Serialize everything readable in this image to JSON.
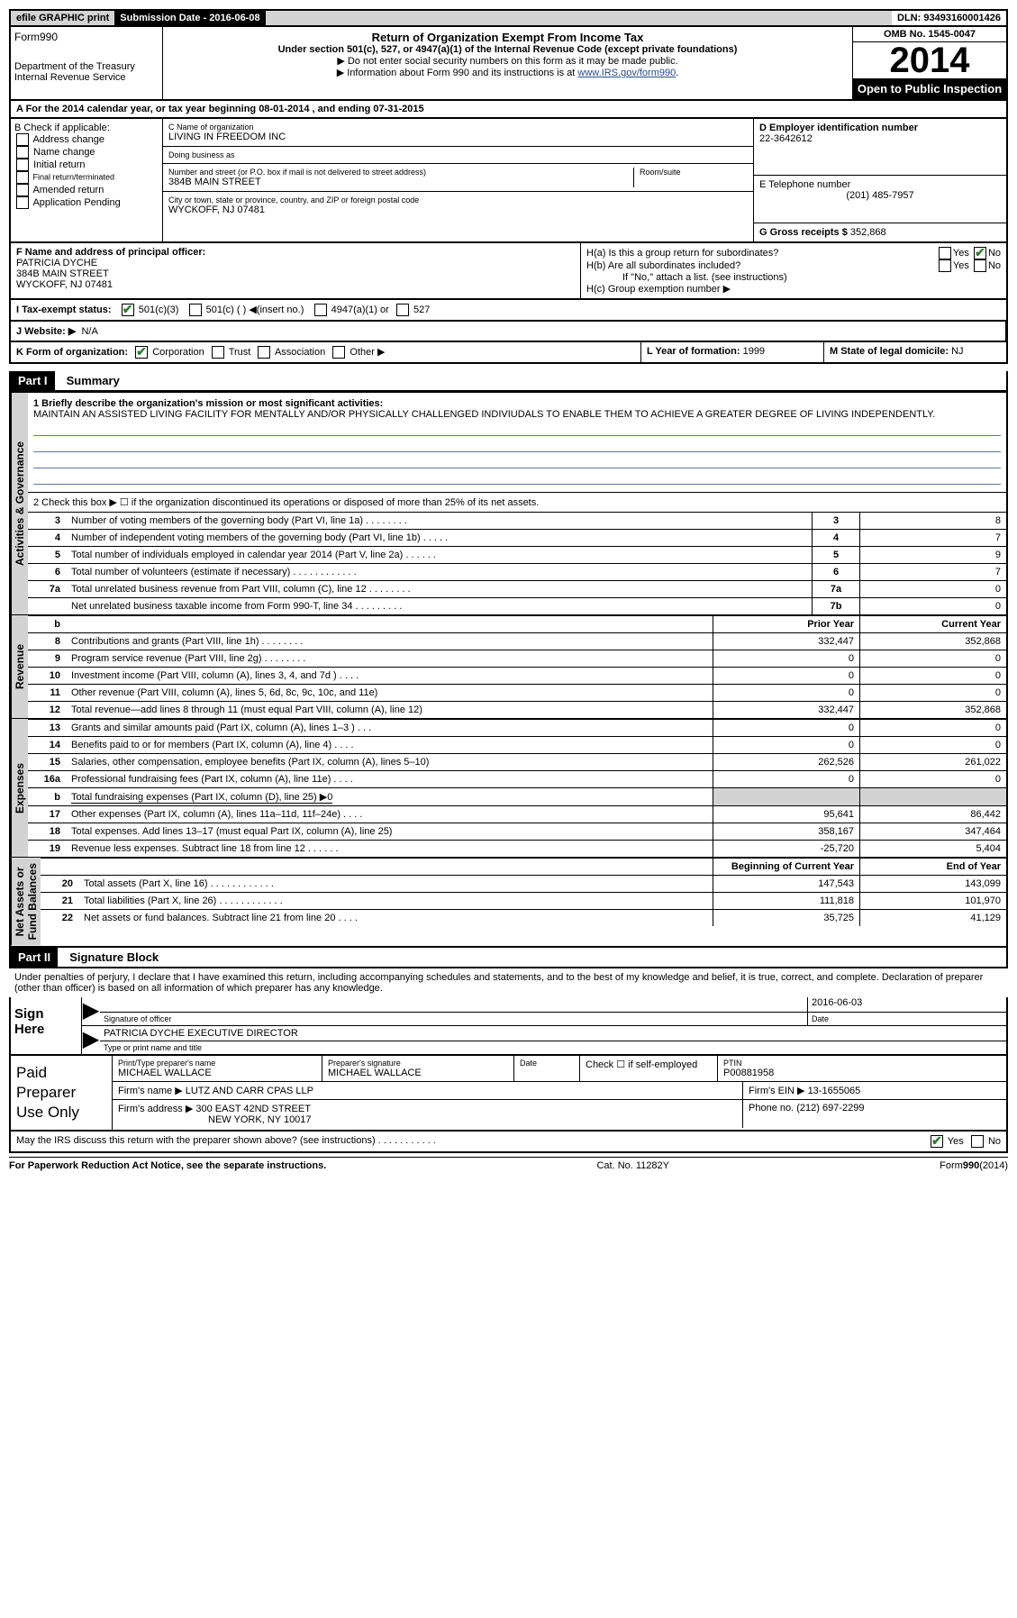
{
  "topbar": {
    "efile": "efile GRAPHIC print",
    "sub_label": "Submission Date - 2016-06-08",
    "dln": "DLN: 93493160001426"
  },
  "header": {
    "form": "Form990",
    "dept1": "Department of the Treasury",
    "dept2": "Internal Revenue Service",
    "title": "Return of Organization Exempt From Income Tax",
    "sub1": "Under section 501(c), 527, or 4947(a)(1) of the Internal Revenue Code (except private foundations)",
    "sub2": "▶ Do not enter social security numbers on this form as it may be made public.",
    "sub3_a": "▶ Information about Form 990 and its instructions is at ",
    "sub3_link": "www.IRS.gov/form990",
    "omb": "OMB No. 1545-0047",
    "year": "2014",
    "open": "Open to Public Inspection"
  },
  "lineA": "A  For the 2014 calendar year, or tax year beginning 08-01-2014    , and ending 07-31-2015",
  "boxB": {
    "label": "B Check if applicable:",
    "opts": [
      "Address change",
      "Name change",
      "Initial return",
      "Final return/terminated",
      "Amended return",
      "Application Pending"
    ]
  },
  "boxC": {
    "name_label": "C Name of organization",
    "name": "LIVING IN FREEDOM INC",
    "dba_label": "Doing business as",
    "addr_label": "Number and street (or P.O. box if mail is not delivered to street address)",
    "room": "Room/suite",
    "addr": "384B MAIN STREET",
    "city_label": "City or town, state or province, country, and ZIP or foreign postal code",
    "city": "WYCKOFF, NJ  07481"
  },
  "boxD": {
    "label": "D Employer identification number",
    "val": "22-3642612"
  },
  "boxE": {
    "label": "E Telephone number",
    "val": "(201) 485-7957"
  },
  "boxG": {
    "label": "G Gross receipts $",
    "val": "352,868"
  },
  "boxF": {
    "label": "F  Name and address of principal officer:",
    "name": "PATRICIA DYCHE",
    "addr1": "384B MAIN STREET",
    "addr2": "WYCKOFF, NJ  07481"
  },
  "boxH": {
    "ha": "H(a)  Is this a group return for subordinates?",
    "hb": "H(b)  Are all subordinates included?",
    "hb_note": "If \"No,\" attach a list. (see instructions)",
    "hc": "H(c)  Group exemption number ▶",
    "yes": "Yes",
    "no": "No"
  },
  "boxI": {
    "label": "I    Tax-exempt status:",
    "o1": "501(c)(3)",
    "o2": "501(c) (   ) ◀(insert no.)",
    "o3": "4947(a)(1) or",
    "o4": "527"
  },
  "boxJ": {
    "label": "J   Website: ▶",
    "val": "N/A"
  },
  "boxK": {
    "label": "K Form of organization:",
    "o1": "Corporation",
    "o2": "Trust",
    "o3": "Association",
    "o4": "Other ▶"
  },
  "boxL": {
    "label": "L Year of formation:",
    "val": "1999"
  },
  "boxM": {
    "label": "M State of legal domicile:",
    "val": "NJ"
  },
  "part1": {
    "tab": "Part I",
    "title": "Summary",
    "q1": "1  Briefly describe the organization's mission or most significant activities:",
    "mission": "MAINTAIN AN ASSISTED LIVING FACILITY FOR MENTALLY AND/OR PHYSICALLY CHALLENGED INDIVIUDALS TO ENABLE THEM TO ACHIEVE A GREATER DEGREE OF LIVING INDEPENDENTLY.",
    "q2": "2   Check this box ▶ ☐  if the organization discontinued its operations or disposed of more than 25% of its net assets.",
    "rows_ag": [
      {
        "n": "3",
        "t": "Number of voting members of the governing body (Part VI, line 1a)   .    .    .    .    .    .    .    .",
        "b": "3",
        "v": "8"
      },
      {
        "n": "4",
        "t": "Number of independent voting members of the governing body (Part VI, line 1b)    .    .    .    .    .",
        "b": "4",
        "v": "7"
      },
      {
        "n": "5",
        "t": "Total number of individuals employed in calendar year 2014 (Part V, line 2a)    .    .    .    .    .    .",
        "b": "5",
        "v": "9"
      },
      {
        "n": "6",
        "t": "Total number of volunteers (estimate if necessary)    .    .    .    .    .    .    .    .    .    .    .    .",
        "b": "6",
        "v": "7"
      },
      {
        "n": "7a",
        "t": "Total unrelated business revenue from Part VIII, column (C), line 12    .    .    .    .    .    .    .    .",
        "b": "7a",
        "v": "0"
      },
      {
        "n": "",
        "t": "Net unrelated business taxable income from Form 990-T, line 34    .    .    .    .    .    .    .    .    .",
        "b": "7b",
        "v": "0"
      }
    ],
    "prior": "Prior Year",
    "current": "Current Year",
    "rows_rev": [
      {
        "n": "8",
        "t": "Contributions and grants (Part VIII, line 1h)    .    .    .    .    .    .    .    .",
        "p": "332,447",
        "c": "352,868"
      },
      {
        "n": "9",
        "t": "Program service revenue (Part VIII, line 2g)    .    .    .    .    .    .    .    .",
        "p": "0",
        "c": "0"
      },
      {
        "n": "10",
        "t": "Investment income (Part VIII, column (A), lines 3, 4, and 7d )    .    .    .    .",
        "p": "0",
        "c": "0"
      },
      {
        "n": "11",
        "t": "Other revenue (Part VIII, column (A), lines 5, 6d, 8c, 9c, 10c, and 11e)",
        "p": "0",
        "c": "0"
      },
      {
        "n": "12",
        "t": "Total revenue—add lines 8 through 11 (must equal Part VIII, column (A), line 12)",
        "p": "332,447",
        "c": "352,868"
      }
    ],
    "rows_exp": [
      {
        "n": "13",
        "t": "Grants and similar amounts paid (Part IX, column (A), lines 1–3 )    .    .    .",
        "p": "0",
        "c": "0"
      },
      {
        "n": "14",
        "t": "Benefits paid to or for members (Part IX, column (A), line 4)    .    .    .    .",
        "p": "0",
        "c": "0"
      },
      {
        "n": "15",
        "t": "Salaries, other compensation, employee benefits (Part IX, column (A), lines 5–10)",
        "p": "262,526",
        "c": "261,022"
      },
      {
        "n": "16a",
        "t": "Professional fundraising fees (Part IX, column (A), line 11e)    .    .    .    .",
        "p": "0",
        "c": "0"
      },
      {
        "n": "b",
        "t": "Total fundraising expenses (Part IX, column (D), line 25) ▶0",
        "p": "",
        "c": "",
        "shade": true,
        "ul": true
      },
      {
        "n": "17",
        "t": "Other expenses (Part IX, column (A), lines 11a–11d, 11f–24e)    .    .    .    .",
        "p": "95,641",
        "c": "86,442"
      },
      {
        "n": "18",
        "t": "Total expenses. Add lines 13–17 (must equal Part IX, column (A), line 25)",
        "p": "358,167",
        "c": "347,464"
      },
      {
        "n": "19",
        "t": "Revenue less expenses. Subtract line 18 from line 12    .    .    .    .    .    .",
        "p": "-25,720",
        "c": "5,404"
      }
    ],
    "boy": "Beginning of Current Year",
    "eoy": "End of Year",
    "rows_net": [
      {
        "n": "20",
        "t": "Total assets (Part X, line 16)    .    .    .    .    .    .    .    .    .    .    .    .",
        "p": "147,543",
        "c": "143,099"
      },
      {
        "n": "21",
        "t": "Total liabilities (Part X, line 26)   .    .    .    .    .    .    .    .    .    .    .    .",
        "p": "111,818",
        "c": "101,970"
      },
      {
        "n": "22",
        "t": "Net assets or fund balances. Subtract line 21 from line 20    .    .    .    .",
        "p": "35,725",
        "c": "41,129"
      }
    ],
    "vtabs": {
      "ag": "Activities & Governance",
      "rev": "Revenue",
      "exp": "Expenses",
      "net": "Net Assets or\nFund Balances"
    }
  },
  "part2": {
    "tab": "Part II",
    "title": "Signature Block",
    "decl": "Under penalties of perjury, I declare that I have examined this return, including accompanying schedules and statements, and to the best of my knowledge and belief, it is true, correct, and complete. Declaration of preparer (other than officer) is based on all information of which preparer has any knowledge.",
    "sign_here": "Sign Here",
    "sig_of": "Signature of officer",
    "date_l": "Date",
    "date_v": "2016-06-03",
    "name_title": "PATRICIA DYCHE  EXECUTIVE DIRECTOR",
    "typeprint": "Type or print name and title"
  },
  "prep": {
    "left": "Paid Preparer Use Only",
    "p_name_l": "Print/Type preparer's name",
    "p_name": "MICHAEL WALLACE",
    "p_sig_l": "Preparer's signature",
    "p_sig": "MICHAEL WALLACE",
    "date_l": "Date",
    "check_l": "Check ☐ if self-employed",
    "ptin_l": "PTIN",
    "ptin": "P00881958",
    "firm_l": "Firm's name     ▶",
    "firm": "LUTZ AND CARR CPAS LLP",
    "ein_l": "Firm's EIN ▶",
    "ein": "13-1655065",
    "addr_l": "Firm's address ▶",
    "addr1": "300 EAST 42ND STREET",
    "addr2": "NEW YORK, NY  10017",
    "phone_l": "Phone no.",
    "phone": "(212) 697-2299"
  },
  "discuss": {
    "q": "May the IRS discuss this return with the preparer shown above? (see instructions)    .    .    .    .    .    .    .    .    .    .    .",
    "yes": "Yes",
    "no": "No"
  },
  "footer": {
    "l": "For Paperwork Reduction Act Notice, see the separate instructions.",
    "c": "Cat. No. 11282Y",
    "r": "Form990(2014)"
  }
}
